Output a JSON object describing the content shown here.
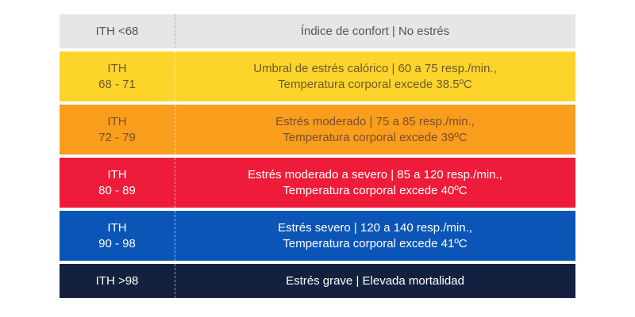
{
  "colors": {
    "row0_bg": "#e6e6e6",
    "row1_bg": "#fdd52a",
    "row2_bg": "#f99d1c",
    "row3_bg": "#ee1c3a",
    "row4_bg": "#0b55b7",
    "row5_bg": "#13213f",
    "row0_text": "#555555",
    "row1_text": "#6b5a2a",
    "row2_text": "#7a4f2a",
    "row3_text": "#ffffff",
    "row4_text": "#ffffff",
    "row5_text": "#ffffff"
  },
  "rows": [
    {
      "ith_line1": "ITH <68",
      "ith_line2": "",
      "desc_line1": "Índice de confort  |  No estrés",
      "desc_line2": ""
    },
    {
      "ith_line1": "ITH",
      "ith_line2": "68 - 71",
      "desc_line1": "Umbral de estrés calórico  |  60 a 75 resp./min.,",
      "desc_line2": "Temperatura corporal excede 38.5ºC"
    },
    {
      "ith_line1": "ITH",
      "ith_line2": "72 - 79",
      "desc_line1": "Estrés moderado  |  75 a 85 resp./min.,",
      "desc_line2": "Temperatura corporal excede 39ºC"
    },
    {
      "ith_line1": "ITH",
      "ith_line2": "80 - 89",
      "desc_line1": "Estrés moderado a severo  |  85 a 120 resp./min.,",
      "desc_line2": "Temperatura corporal excede 40ºC"
    },
    {
      "ith_line1": "ITH",
      "ith_line2": "90 - 98",
      "desc_line1": "Estrés severo  |  120 a 140 resp./min.,",
      "desc_line2": "Temperatura corporal excede 41ºC"
    },
    {
      "ith_line1": "ITH >98",
      "ith_line2": "",
      "desc_line1": "Estrés grave  | Elevada mortalidad",
      "desc_line2": ""
    }
  ]
}
